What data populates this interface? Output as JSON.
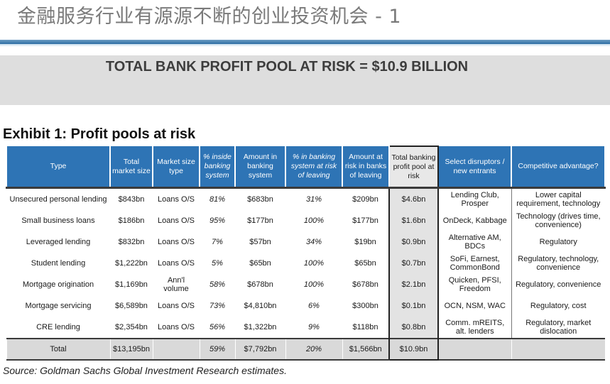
{
  "slide": {
    "title": "金融服务行业有源源不断的创业投资机会 - 1"
  },
  "banner": {
    "text": "TOTAL BANK PROFIT POOL AT RISK = $10.9 BILLION"
  },
  "exhibit": {
    "title": "Exhibit 1: Profit pools at risk"
  },
  "table": {
    "headers": [
      "Type",
      "Total market size",
      "Market size type",
      "% inside banking system",
      "Amount in banking system",
      "% in banking system at risk of leaving",
      "Amount at risk in banks of leaving",
      "Total banking profit pool at risk",
      "Select disruptors / new entrants",
      "Competitive advantage?"
    ],
    "rows": [
      [
        "Unsecured personal lending",
        "$843bn",
        "Loans O/S",
        "81%",
        "$683bn",
        "31%",
        "$209bn",
        "$4.6bn",
        "Lending Club, Prosper",
        "Lower capital requirement, technology"
      ],
      [
        "Small business loans",
        "$186bn",
        "Loans O/S",
        "95%",
        "$177bn",
        "100%",
        "$177bn",
        "$1.6bn",
        "OnDeck, Kabbage",
        "Technology (drives time, convenience)"
      ],
      [
        "Leveraged lending",
        "$832bn",
        "Loans O/S",
        "7%",
        "$57bn",
        "34%",
        "$19bn",
        "$0.9bn",
        "Alternative AM, BDCs",
        "Regulatory"
      ],
      [
        "Student lending",
        "$1,222bn",
        "Loans O/S",
        "5%",
        "$65bn",
        "100%",
        "$65bn",
        "$0.7bn",
        "SoFi, Earnest, CommonBond",
        "Regulatory, technology, convenience"
      ],
      [
        "Mortgage origination",
        "$1,169bn",
        "Ann'l volume",
        "58%",
        "$678bn",
        "100%",
        "$678bn",
        "$2.1bn",
        "Quicken, PFSI, Freedom",
        "Regulatory, convenience"
      ],
      [
        "Mortgage servicing",
        "$6,589bn",
        "Loans O/S",
        "73%",
        "$4,810bn",
        "6%",
        "$300bn",
        "$0.1bn",
        "OCN, NSM, WAC",
        "Regulatory, cost"
      ],
      [
        "CRE lending",
        "$2,354bn",
        "Loans O/S",
        "56%",
        "$1,322bn",
        "9%",
        "$118bn",
        "$0.8bn",
        "Comm. mREITS, alt. lenders",
        "Regulatory, market dislocation"
      ]
    ],
    "total": [
      "Total",
      "$13,195bn",
      "",
      "59%",
      "$7,792bn",
      "20%",
      "$1,566bn",
      "$10.9bn",
      "",
      ""
    ]
  },
  "footer": {
    "source": "Source: Goldman Sachs Global Investment Research estimates."
  },
  "colors": {
    "header_blue": "#2e74b5",
    "title_rule": "#2c6da4",
    "banner_gray": "#dedede",
    "highlight_gray": "#e3e3e3"
  }
}
